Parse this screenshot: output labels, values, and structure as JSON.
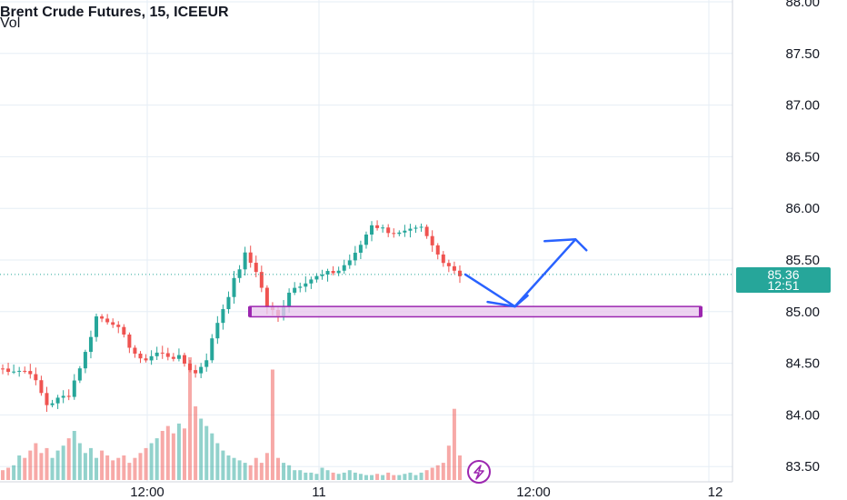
{
  "header": {
    "symbol_title": "Brent Crude Futures, 15, ICEEUR",
    "volume_label": "Vol"
  },
  "price_badge": {
    "price": "85.36",
    "countdown": "12:51",
    "color": "#26a69a"
  },
  "colors": {
    "up": "#26a69a",
    "down": "#ef5350",
    "grid": "#e6eef5",
    "zone_fill": "#e8c8ee",
    "zone_stroke": "#9c27b0",
    "arrow": "#2962ff",
    "logo": "#9c27b0"
  },
  "chart_data": {
    "type": "candlestick",
    "ylim": [
      83.4,
      88.0
    ],
    "y_ticks": [
      "88.00",
      "87.50",
      "87.00",
      "86.50",
      "86.00",
      "85.50",
      "85.00",
      "84.50",
      "84.00",
      "83.50"
    ],
    "x_ticks": [
      "12:00",
      "11",
      "12:00",
      "12"
    ],
    "current_price": 85.36,
    "anchors": [
      [
        0,
        84.45
      ],
      [
        6,
        84.42
      ],
      [
        9,
        84.1
      ],
      [
        13,
        84.2
      ],
      [
        16,
        84.6
      ],
      [
        18,
        84.95
      ],
      [
        21,
        84.9
      ],
      [
        23,
        84.75
      ],
      [
        26,
        84.52
      ],
      [
        29,
        84.6
      ],
      [
        33,
        84.55
      ],
      [
        36,
        84.4
      ],
      [
        38,
        84.55
      ],
      [
        40,
        84.9
      ],
      [
        43,
        85.3
      ],
      [
        45,
        85.55
      ],
      [
        47,
        85.4
      ],
      [
        49,
        85.05
      ],
      [
        51,
        84.95
      ],
      [
        53,
        85.2
      ],
      [
        56,
        85.3
      ],
      [
        62,
        85.4
      ],
      [
        65,
        85.55
      ],
      [
        68,
        85.85
      ],
      [
        70,
        85.8
      ],
      [
        73,
        85.75
      ],
      [
        77,
        85.8
      ],
      [
        80,
        85.55
      ],
      [
        82,
        85.45
      ],
      [
        84,
        85.36
      ]
    ],
    "volume": [
      8,
      10,
      12,
      20,
      18,
      24,
      30,
      22,
      26,
      18,
      24,
      28,
      34,
      40,
      30,
      22,
      26,
      18,
      24,
      20,
      16,
      18,
      20,
      14,
      18,
      22,
      26,
      30,
      34,
      40,
      44,
      38,
      46,
      42,
      100,
      60,
      50,
      44,
      38,
      30,
      24,
      20,
      18,
      16,
      14,
      12,
      18,
      14,
      22,
      90,
      18,
      14,
      12,
      8,
      8,
      6,
      6,
      5,
      10,
      8,
      6,
      5,
      6,
      8,
      6,
      5,
      4,
      4,
      5,
      4,
      6,
      4,
      4,
      5,
      6,
      4,
      6,
      8,
      10,
      12,
      14,
      28,
      58,
      20
    ],
    "support_zone": [
      84.95,
      85.05
    ],
    "projection": [
      {
        "t": 84,
        "price": 85.36
      },
      {
        "t": 93,
        "price": 85.05
      },
      {
        "t": 104,
        "price": 85.7
      }
    ]
  }
}
